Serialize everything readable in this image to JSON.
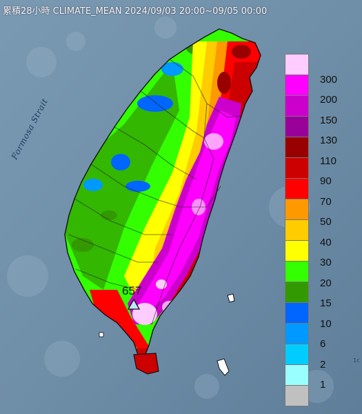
{
  "title": "累積28小時 CLIMATE_MEAN 2024/09/03 20:00~09/05 00:00",
  "strait_label": "Formosa Strait",
  "max_station": {
    "value": "657",
    "marker": "triangle-icon"
  },
  "corner_text": "1c",
  "legend": {
    "items": [
      {
        "label": "300",
        "color": "#ffccff"
      },
      {
        "label": "200",
        "color": "#ff00ff"
      },
      {
        "label": "150",
        "color": "#cc00cc"
      },
      {
        "label": "130",
        "color": "#990099"
      },
      {
        "label": "110",
        "color": "#990000"
      },
      {
        "label": "90",
        "color": "#cc0000"
      },
      {
        "label": "70",
        "color": "#ff0000"
      },
      {
        "label": "50",
        "color": "#ff9900"
      },
      {
        "label": "40",
        "color": "#ffcc00"
      },
      {
        "label": "30",
        "color": "#ffff00"
      },
      {
        "label": "20",
        "color": "#33ff00"
      },
      {
        "label": "15",
        "color": "#339900"
      },
      {
        "label": "10",
        "color": "#0066ff"
      },
      {
        "label": "6",
        "color": "#0099ff"
      },
      {
        "label": "2",
        "color": "#00ccff"
      },
      {
        "label": "1",
        "color": "#99ffff"
      },
      {
        "label": "",
        "color": "#c0c0c0"
      }
    ]
  }
}
